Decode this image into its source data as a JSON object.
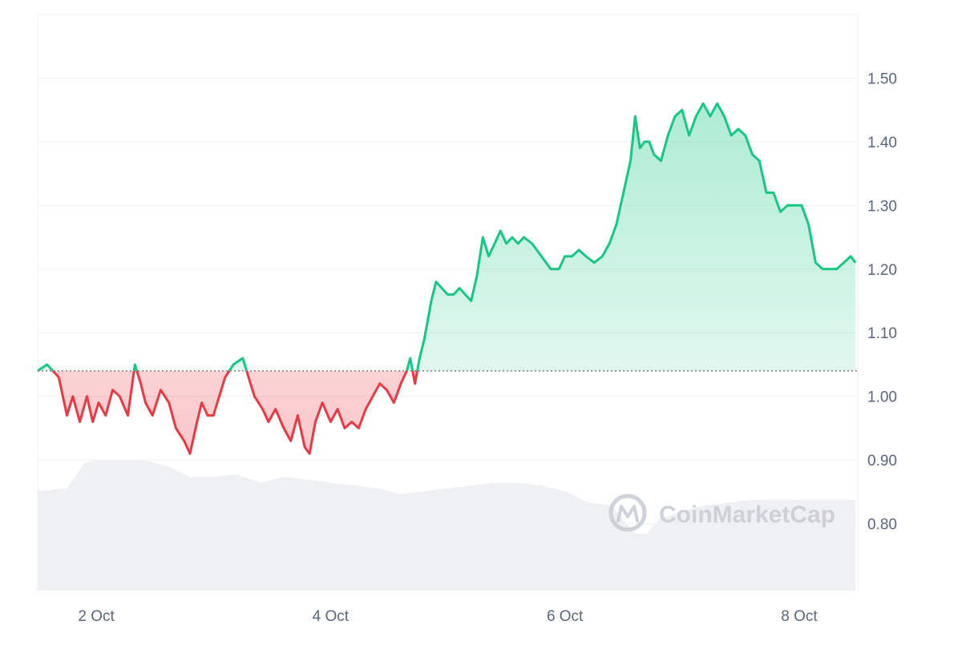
{
  "chart_data": {
    "type": "area",
    "title": "",
    "xlabel": "",
    "ylabel": "",
    "x_ticks": [
      "2 Oct",
      "4 Oct",
      "6 Oct",
      "8 Oct"
    ],
    "y_ticks": [
      "1.50",
      "1.40",
      "1.30",
      "1.20",
      "1.10",
      "1.00",
      "0.90",
      "0.80"
    ],
    "ylim": [
      0.695,
      1.6
    ],
    "xlim_days": [
      1.5,
      8.5
    ],
    "baseline": 1.04,
    "grid": true,
    "price_series": {
      "x_days": [
        1.5,
        1.58,
        1.63,
        1.68,
        1.75,
        1.8,
        1.86,
        1.92,
        1.97,
        2.02,
        2.08,
        2.14,
        2.2,
        2.27,
        2.33,
        2.38,
        2.42,
        2.48,
        2.55,
        2.62,
        2.68,
        2.75,
        2.8,
        2.86,
        2.9,
        2.95,
        3.0,
        3.05,
        3.1,
        3.17,
        3.25,
        3.3,
        3.35,
        3.42,
        3.47,
        3.53,
        3.6,
        3.66,
        3.72,
        3.78,
        3.82,
        3.87,
        3.93,
        4.0,
        4.06,
        4.12,
        4.18,
        4.24,
        4.3,
        4.36,
        4.42,
        4.48,
        4.54,
        4.6,
        4.65,
        4.68,
        4.72,
        4.76,
        4.8,
        4.83,
        4.86,
        4.9,
        4.95,
        5.0,
        5.05,
        5.1,
        5.15,
        5.2,
        5.25,
        5.3,
        5.35,
        5.4,
        5.45,
        5.5,
        5.55,
        5.6,
        5.65,
        5.72,
        5.8,
        5.88,
        5.95,
        6.0,
        6.06,
        6.12,
        6.18,
        6.25,
        6.32,
        6.38,
        6.44,
        6.5,
        6.56,
        6.6,
        6.64,
        6.68,
        6.72,
        6.76,
        6.82,
        6.88,
        6.94,
        7.0,
        7.06,
        7.12,
        7.18,
        7.24,
        7.3,
        7.36,
        7.42,
        7.48,
        7.54,
        7.6,
        7.66,
        7.72,
        7.78,
        7.84,
        7.9,
        7.96,
        8.02,
        8.08,
        8.14,
        8.2,
        8.26,
        8.32,
        8.38,
        8.44,
        8.48
      ],
      "y": [
        1.04,
        1.05,
        1.04,
        1.03,
        0.97,
        1.0,
        0.96,
        1.0,
        0.96,
        0.99,
        0.97,
        1.01,
        1.0,
        0.97,
        1.05,
        1.02,
        0.99,
        0.97,
        1.01,
        0.99,
        0.95,
        0.93,
        0.91,
        0.96,
        0.99,
        0.97,
        0.97,
        1.0,
        1.03,
        1.05,
        1.06,
        1.03,
        1.0,
        0.98,
        0.96,
        0.98,
        0.95,
        0.93,
        0.97,
        0.92,
        0.91,
        0.96,
        0.99,
        0.96,
        0.98,
        0.95,
        0.96,
        0.95,
        0.98,
        1.0,
        1.02,
        1.01,
        0.99,
        1.02,
        1.04,
        1.06,
        1.02,
        1.06,
        1.09,
        1.12,
        1.15,
        1.18,
        1.17,
        1.16,
        1.16,
        1.17,
        1.16,
        1.15,
        1.19,
        1.25,
        1.22,
        1.24,
        1.26,
        1.24,
        1.25,
        1.24,
        1.25,
        1.24,
        1.22,
        1.2,
        1.2,
        1.22,
        1.22,
        1.23,
        1.22,
        1.21,
        1.22,
        1.24,
        1.27,
        1.32,
        1.37,
        1.44,
        1.39,
        1.4,
        1.4,
        1.38,
        1.37,
        1.41,
        1.44,
        1.45,
        1.41,
        1.44,
        1.46,
        1.44,
        1.46,
        1.44,
        1.41,
        1.42,
        1.41,
        1.38,
        1.37,
        1.32,
        1.32,
        1.29,
        1.3,
        1.3,
        1.3,
        1.27,
        1.21,
        1.2,
        1.2,
        1.2,
        1.21,
        1.22,
        1.21
      ]
    },
    "volume_series": {
      "x_days": [
        1.5,
        1.75,
        1.9,
        2.0,
        2.2,
        2.4,
        2.6,
        2.8,
        3.0,
        3.2,
        3.4,
        3.6,
        3.8,
        4.0,
        4.2,
        4.4,
        4.6,
        4.8,
        5.0,
        5.2,
        5.4,
        5.6,
        5.8,
        6.0,
        6.2,
        6.4,
        6.6,
        6.7,
        6.8,
        7.0,
        7.2,
        7.4,
        7.6,
        7.8,
        8.0,
        8.2,
        8.4,
        8.48
      ],
      "level": [
        0.35,
        0.36,
        0.45,
        0.46,
        0.46,
        0.46,
        0.44,
        0.4,
        0.4,
        0.41,
        0.38,
        0.4,
        0.39,
        0.38,
        0.37,
        0.36,
        0.34,
        0.35,
        0.36,
        0.37,
        0.38,
        0.38,
        0.37,
        0.35,
        0.31,
        0.3,
        0.2,
        0.2,
        0.25,
        0.28,
        0.3,
        0.31,
        0.32,
        0.32,
        0.32,
        0.32,
        0.32,
        0.32
      ]
    },
    "colors": {
      "up_line": "#16c784",
      "down_line": "#ea3943",
      "up_fill": "#16c784",
      "down_fill": "#ea3943",
      "volume_fill": "#eef0f3",
      "grid": "#eef0f3",
      "tick_text": "#58667e",
      "baseline": "#666666"
    },
    "watermark": "CoinMarketCap"
  }
}
